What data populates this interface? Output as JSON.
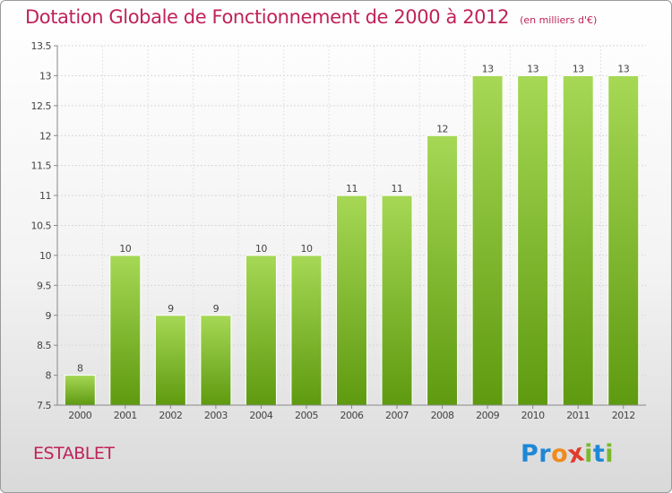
{
  "title": "Dotation Globale de Fonctionnement de 2000 à 2012",
  "unit": "(en milliers d'€)",
  "commune": "ESTABLET",
  "logo": {
    "letters": [
      "P",
      "r",
      "o",
      "x",
      "i",
      "t",
      "i"
    ],
    "colors": [
      "#1f88d6",
      "#1f88d6",
      "#f08a1c",
      "#e23b2c",
      "#7ab82e",
      "#1f88d6",
      "#7ab82e"
    ]
  },
  "colors": {
    "bar_light": "#a6d855",
    "bar_dark": "#5e9a10",
    "title": "#c0225a"
  },
  "chart_data": {
    "type": "bar",
    "title": "Dotation Globale de Fonctionnement de 2000 à 2012",
    "subtitle": "(en milliers d'€)",
    "categories": [
      "2000",
      "2001",
      "2002",
      "2003",
      "2004",
      "2005",
      "2006",
      "2007",
      "2008",
      "2009",
      "2010",
      "2011",
      "2012"
    ],
    "values": [
      8,
      10,
      9,
      9,
      10,
      10,
      11,
      11,
      12,
      13,
      13,
      13,
      13
    ],
    "ylim": [
      7.5,
      13.5
    ],
    "yticks": [
      "7.5",
      "8",
      "8.5",
      "9",
      "9.5",
      "10",
      "10.5",
      "11",
      "11.5",
      "12",
      "12.5",
      "13",
      "13.5"
    ],
    "grid": true,
    "legend": "none"
  }
}
